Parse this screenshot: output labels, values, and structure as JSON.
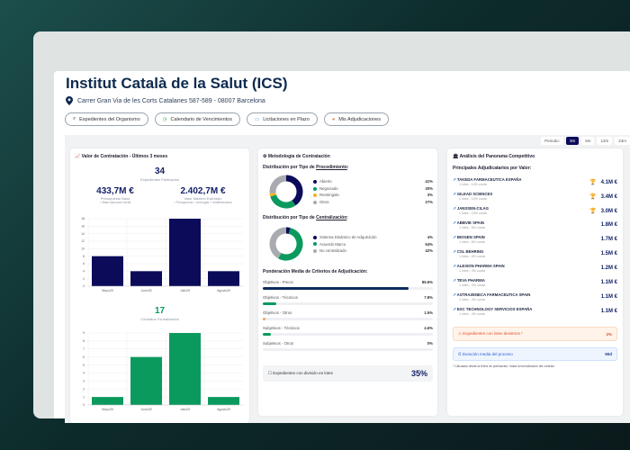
{
  "header": {
    "title": "Institut Català de la Salut (ICS)",
    "address": "Carrer Gran Via de les Corts Catalanes 587-589 - 08007 Barcelona"
  },
  "actions": [
    {
      "label": "Expedientes del Organismo",
      "icon": "search-icon"
    },
    {
      "label": "Calendario de Vencimientos",
      "icon": "clock-icon"
    },
    {
      "label": "Licitaciones en Plazo",
      "icon": "calendar-icon"
    },
    {
      "label": "Mis Adjudicaciones",
      "icon": "person-icon"
    }
  ],
  "period": {
    "label": "Periodo:",
    "options": [
      "3m",
      "6m",
      "12m",
      "24m"
    ],
    "selected": "3m"
  },
  "value_card": {
    "title": "Valor de Contratación - Últimos 3 meses",
    "count": "34",
    "count_label": "Expedientes Publicados",
    "budget": "433,7M €",
    "budget_label": "Presupuesto Base",
    "budget_note": "= Base ejecución inicial",
    "max": "2.402,7M €",
    "max_label": "Valor Máximo Estimado",
    "max_note": "= Presupuesto + prórrogas + modificaciones",
    "contracts": "17",
    "contracts_label": "Contratos Formalizados"
  },
  "chart_data": [
    {
      "type": "bar",
      "categories": [
        "Mayo25",
        "Junio25",
        "Julio25",
        "Agosto25"
      ],
      "values": [
        8,
        4,
        18,
        4
      ],
      "ylim": [
        0,
        18
      ],
      "yticks": [
        0,
        2,
        4,
        6,
        8,
        10,
        12,
        14,
        16,
        18
      ],
      "color": "#0b0b5a",
      "grid": true
    },
    {
      "type": "bar",
      "categories": [
        "Mayo25",
        "Junio25",
        "Julio25",
        "Agosto25"
      ],
      "values": [
        1,
        6,
        9,
        1
      ],
      "ylim": [
        0,
        9
      ],
      "yticks": [
        0,
        1,
        2,
        3,
        4,
        5,
        6,
        7,
        8,
        9
      ],
      "color": "#0b9a5e",
      "grid": true
    }
  ],
  "method": {
    "title": "Metodología de Contratación",
    "proc_title_prefix": "Distribución por Tipo de ",
    "proc_title_link": "Procedimiento",
    "proc": [
      {
        "label": "Abierto",
        "pct": "41%",
        "value": 41,
        "color": "#0b0b5a"
      },
      {
        "label": "Negociado",
        "pct": "30%",
        "value": 30,
        "color": "#0b9a5e"
      },
      {
        "label": "Restringido",
        "pct": "3%",
        "value": 3,
        "color": "#f5b324"
      },
      {
        "label": "Otros",
        "pct": "27%",
        "value": 27,
        "color": "#a9abb0"
      }
    ],
    "cent_title_prefix": "Distribución por Tipo de ",
    "cent_title_link": "Centralización",
    "cent": [
      {
        "label": "Sistema Dinámico de Adquisición",
        "pct": "4%",
        "value": 4,
        "color": "#0b0b5a"
      },
      {
        "label": "Acuerdo Marco",
        "pct": "54%",
        "value": 54,
        "color": "#0b9a5e"
      },
      {
        "label": "No centralizado",
        "pct": "42%",
        "value": 42,
        "color": "#a9abb0"
      }
    ],
    "criteria_title": "Ponderación Media de Criterios de Adjudicación:",
    "criteria": [
      {
        "label": "Objetivos - Precio",
        "pct": "85.6%",
        "value": 85.6,
        "color": "#0e2a5e"
      },
      {
        "label": "Objetivos - Técnicos",
        "pct": "7.8%",
        "value": 7.8,
        "color": "#0b9a5e"
      },
      {
        "label": "Objetivos - Otros",
        "pct": "1.5%",
        "value": 1.5,
        "color": "#f5a05a"
      },
      {
        "label": "Subjetivos - Técnicos",
        "pct": "4.6%",
        "value": 4.6,
        "color": "#0b9a5e"
      },
      {
        "label": "Subjetivos - Otros",
        "pct": "0%",
        "value": 0,
        "color": "#0b9a5e"
      }
    ],
    "lots_label": "Expedientes con división en lotes",
    "lots_value": "35%"
  },
  "competitive": {
    "title": "Análisis del Panorama Competitivo",
    "subtitle": "Principales Adjudicatarios por Valor:",
    "items": [
      {
        "name": "TAKEDA FARMACEUTICA ESPAÑA",
        "meta": "1 lotes - 14% cuota",
        "value": "4.1M €",
        "medal": "#f2c418"
      },
      {
        "name": "GILEAD SCIENCES",
        "meta": "1 lotes - 12% cuota",
        "value": "3.4M €",
        "medal": "#c5c8cc"
      },
      {
        "name": "JANSSEN-CILAG",
        "meta": "1 lotes - 10% cuota",
        "value": "3.0M €",
        "medal": "#e8823a"
      },
      {
        "name": "ABBVIE SPAIN",
        "meta": "1 lotes - 6% cuota",
        "value": "1.8M €"
      },
      {
        "name": "BIOGEN SPAIN",
        "meta": "1 lotes - 6% cuota",
        "value": "1.7M €"
      },
      {
        "name": "CSL BEHRING",
        "meta": "1 lotes - 5% cuota",
        "value": "1.5M €"
      },
      {
        "name": "ALEXION PHARMA SPAIN",
        "meta": "1 lotes - 4% cuota",
        "value": "1.2M €"
      },
      {
        "name": "TEVA PHARMA",
        "meta": "1 lotes - 4% cuota",
        "value": "1.1M €"
      },
      {
        "name": "ASTRAZENECA FARMACEUTICA SPAIN",
        "meta": "1 lotes - 4% cuota",
        "value": "1.1M €"
      },
      {
        "name": "EXC TECHNOLOGY SERVICIOS ESPAÑA",
        "meta": "1 lotes - 4% cuota",
        "value": "1.1M €"
      }
    ],
    "deserted_label": "Expedientes con lotes desiertos ¹",
    "deserted_value": "2%",
    "duration_label": "Duración media del proceso",
    "duration_value": "90d",
    "footnote": "* Calculado desde la fecha de publicación, hasta la formalización del contrato"
  }
}
